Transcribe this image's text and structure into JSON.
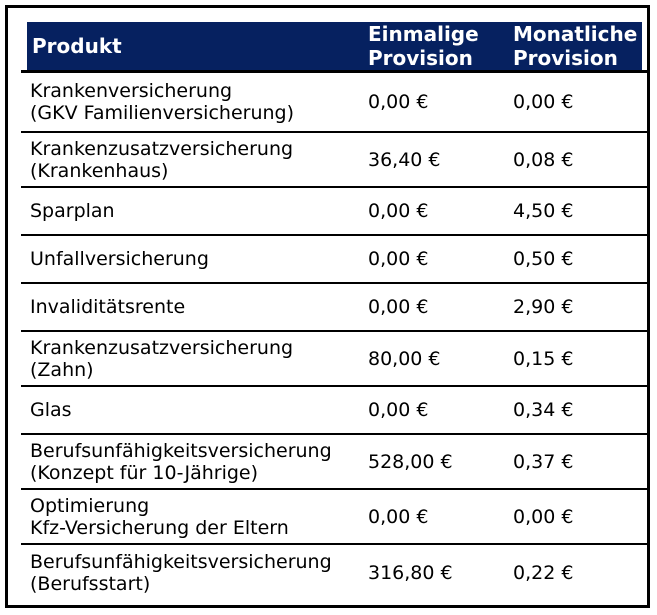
{
  "table": {
    "columns": [
      "Produkt",
      "Einmalige Provision",
      "Monatliche Provision"
    ],
    "rows": [
      {
        "product_line1": "Krankenversicherung",
        "product_line2": "(GKV Familienversicherung)",
        "einmalige": "0,00 €",
        "monatliche": "0,00 €"
      },
      {
        "product_line1": "Krankenzusatzversicherung",
        "product_line2": "(Krankenhaus)",
        "einmalige": "36,40 €",
        "monatliche": "0,08 €"
      },
      {
        "product_line1": "Sparplan",
        "product_line2": "",
        "einmalige": "0,00 €",
        "monatliche": "4,50 €"
      },
      {
        "product_line1": "Unfallversicherung",
        "product_line2": "",
        "einmalige": "0,00 €",
        "monatliche": "0,50 €"
      },
      {
        "product_line1": "Invaliditätsrente",
        "product_line2": "",
        "einmalige": "0,00 €",
        "monatliche": "2,90 €"
      },
      {
        "product_line1": "Krankenzusatzversicherung",
        "product_line2": "(Zahn)",
        "einmalige": "80,00 €",
        "monatliche": "0,15 €"
      },
      {
        "product_line1": "Glas",
        "product_line2": "",
        "einmalige": "0,00 €",
        "monatliche": "0,34 €"
      },
      {
        "product_line1": "Berufsunfähigkeitsversicherung",
        "product_line2": "(Konzept für 10-Jährige)",
        "einmalige": "528,00 €",
        "monatliche": "0,37 €"
      },
      {
        "product_line1": "Optimierung",
        "product_line2": "Kfz-Versicherung der Eltern",
        "einmalige": "0,00 €",
        "monatliche": "0,00 €"
      },
      {
        "product_line1": "Berufsunfähigkeitsversicherung",
        "product_line2": "(Berufsstart)",
        "einmalige": "316,80 €",
        "monatliche": "0,22 €"
      }
    ]
  },
  "colors": {
    "header_bg": "#062160",
    "header_text": "#ffffff",
    "body_text": "#000000",
    "line": "#000000"
  }
}
